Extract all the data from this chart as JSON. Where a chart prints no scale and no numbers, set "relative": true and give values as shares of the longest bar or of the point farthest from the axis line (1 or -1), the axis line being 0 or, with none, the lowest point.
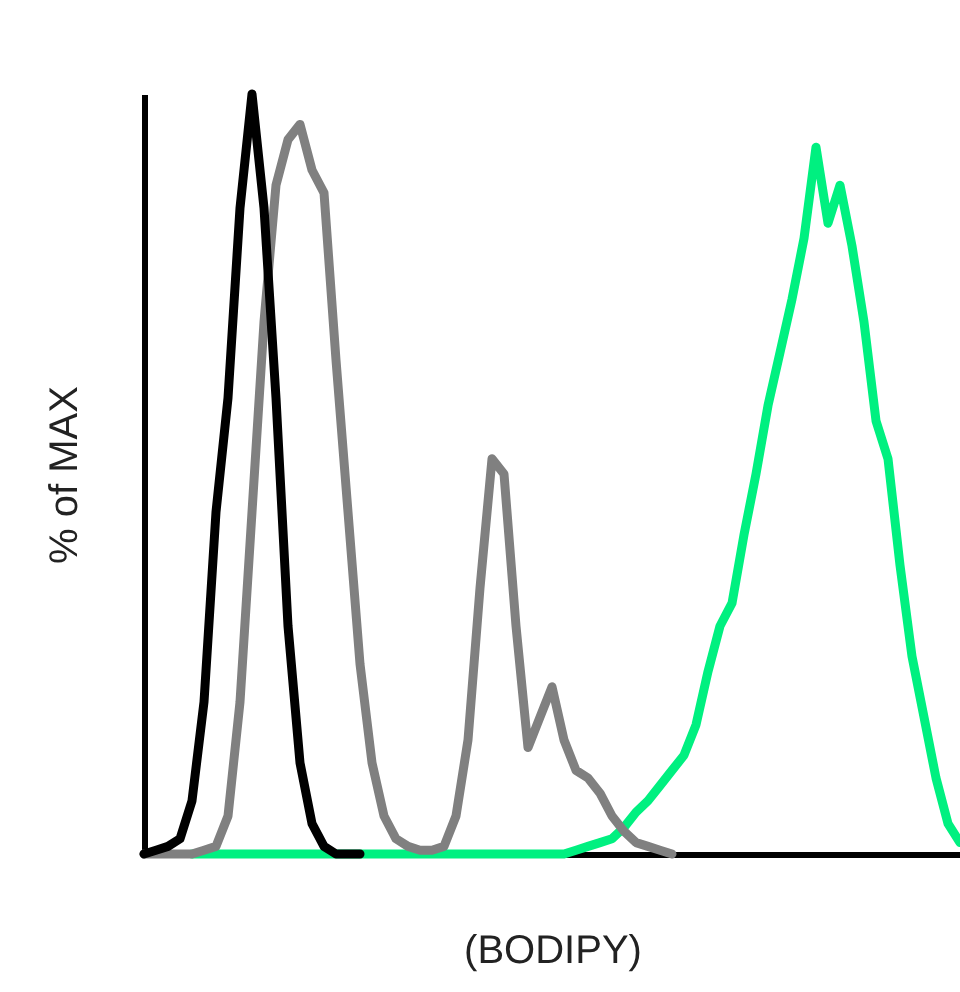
{
  "chart_data": {
    "type": "line",
    "xlabel": "(BODIPY)",
    "ylabel": "% of MAX",
    "relative": true,
    "grid": false,
    "legend": false,
    "marker": "none",
    "line_style": "solid",
    "categories": [
      null,
      null,
      null,
      null,
      null,
      null,
      null,
      null,
      null,
      null,
      null,
      null,
      null,
      null,
      null,
      null,
      null,
      null,
      null,
      null,
      null,
      null,
      null,
      null,
      null,
      null,
      null,
      null,
      null,
      null,
      null,
      null,
      null,
      null,
      null,
      null,
      null,
      null,
      null,
      null,
      null,
      null,
      null,
      null,
      null,
      null,
      null,
      null,
      null,
      null,
      null,
      null,
      null,
      null,
      null,
      null,
      null,
      null,
      null,
      null,
      null,
      null,
      null,
      null,
      null,
      null,
      null,
      null,
      null
    ],
    "series": [
      {
        "color": "#00f080",
        "values": [
          null,
          null,
          null,
          null,
          0,
          0,
          0,
          0,
          0,
          0,
          0,
          0,
          0,
          0,
          0,
          0,
          0,
          0,
          0,
          0,
          0,
          0,
          0,
          0,
          0,
          0,
          0,
          0,
          0,
          0,
          0,
          0,
          0,
          0,
          0,
          0,
          0.005,
          0.01,
          0.015,
          0.02,
          0.035,
          0.055,
          0.07,
          0.09,
          0.11,
          0.13,
          0.17,
          0.24,
          0.3,
          0.33,
          0.42,
          0.5,
          0.59,
          0.66,
          0.73,
          0.81,
          0.93,
          0.83,
          0.88,
          0.8,
          0.7,
          0.57,
          0.52,
          0.38,
          0.26,
          0.18,
          0.1,
          0.04,
          0.015
        ]
      },
      {
        "color": "#808080",
        "values": [
          0,
          0,
          0,
          0,
          0,
          0.005,
          0.01,
          0.05,
          0.2,
          0.45,
          0.7,
          0.88,
          0.94,
          0.96,
          0.9,
          0.87,
          0.65,
          0.45,
          0.25,
          0.12,
          0.05,
          0.02,
          0.01,
          0.005,
          0.005,
          0.01,
          0.05,
          0.15,
          0.35,
          0.52,
          0.5,
          0.3,
          0.14,
          0.18,
          0.22,
          0.15,
          0.11,
          0.1,
          0.08,
          0.05,
          0.03,
          0.015,
          0.01,
          0.005,
          0,
          null,
          null,
          null,
          null,
          null,
          null,
          null,
          null,
          null,
          null,
          null,
          null,
          null,
          null,
          null,
          null,
          null,
          null,
          null,
          null,
          null,
          null,
          null,
          null
        ]
      },
      {
        "color": "#000000",
        "values": [
          0,
          0.005,
          0.01,
          0.02,
          0.07,
          0.2,
          0.45,
          0.6,
          0.85,
          1,
          0.85,
          0.6,
          0.3,
          0.12,
          0.04,
          0.01,
          0,
          0,
          0,
          null,
          null,
          null,
          null,
          null,
          null,
          null,
          null,
          null,
          null,
          null,
          null,
          null,
          null,
          null,
          null,
          null,
          null,
          null,
          null,
          null,
          null,
          null,
          null,
          null,
          null,
          null,
          null,
          null,
          null,
          null,
          null,
          null,
          null,
          null,
          null,
          null,
          null,
          null,
          null,
          null,
          null,
          null,
          null,
          null,
          null,
          null,
          null,
          null,
          null
        ]
      }
    ]
  }
}
